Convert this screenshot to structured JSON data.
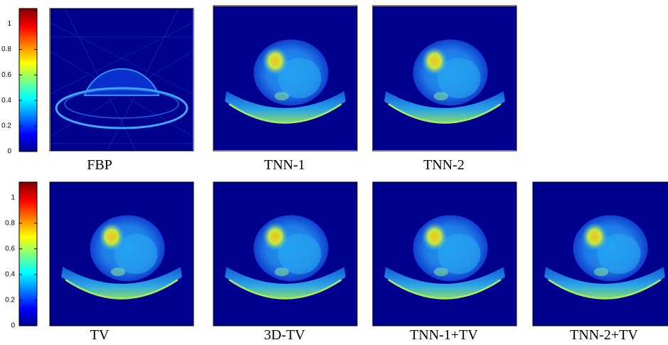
{
  "colorbars": [
    {
      "ylim": [
        0,
        1.12
      ],
      "ticks": [
        0,
        0.2,
        0.4,
        0.6,
        0.8,
        1
      ]
    },
    {
      "ylim": [
        0,
        1.12
      ],
      "ticks": [
        0,
        0.2,
        0.4,
        0.6,
        0.8,
        1
      ]
    }
  ],
  "panels": [
    {
      "label": "FBP"
    },
    {
      "label": "TNN-1"
    },
    {
      "label": "TNN-2"
    },
    {
      "label": "TV"
    },
    {
      "label": "3D-TV"
    },
    {
      "label": "TNN-1+TV"
    },
    {
      "label": "TNN-2+TV"
    }
  ]
}
